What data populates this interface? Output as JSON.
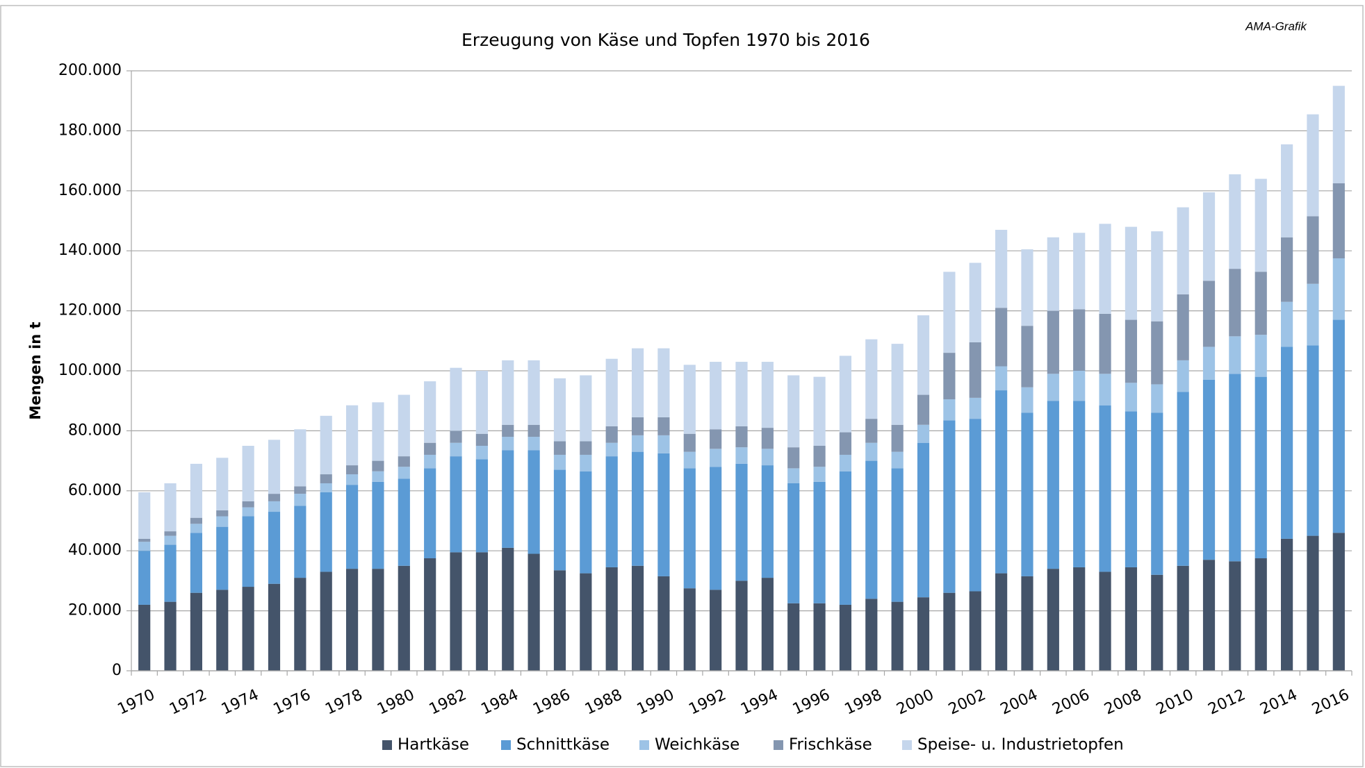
{
  "chart_data": {
    "type": "stacked_bar",
    "title": "Erzeugung von Käse und Topfen 1970 bis 2016",
    "annotation": "AMA-Grafik",
    "y_label": "Mengen in t",
    "categories": [
      "1970",
      null,
      "1972",
      null,
      "1974",
      null,
      "1976",
      null,
      "1978",
      null,
      "1980",
      null,
      "1982",
      null,
      "1984",
      null,
      "1986",
      null,
      "1988",
      null,
      "1990",
      null,
      "1992",
      null,
      "1994",
      null,
      "1996",
      null,
      "1998",
      null,
      "2000",
      null,
      "2002",
      null,
      "2004",
      null,
      "2006",
      null,
      "2008",
      null,
      "2010",
      null,
      "2012",
      null,
      "2014",
      null,
      "2016"
    ],
    "series": [
      {
        "name": "Hartkäse",
        "color": "#44546a",
        "values": [
          22000,
          23000,
          26000,
          27000,
          28000,
          29000,
          31000,
          33000,
          34000,
          34000,
          35000,
          37500,
          39500,
          39500,
          41000,
          39000,
          33500,
          32500,
          34500,
          35000,
          31500,
          27500,
          27000,
          30000,
          31000,
          22500,
          22500,
          22000,
          24000,
          23000,
          24500,
          26000,
          26500,
          32500,
          31500,
          34000,
          34500,
          33000,
          34500,
          32000,
          35000,
          37000,
          36500,
          37500,
          44000,
          45000,
          46000
        ]
      },
      {
        "name": "Schnittkäse",
        "color": "#5b9bd5",
        "values": [
          18000,
          19000,
          20000,
          21000,
          23500,
          24000,
          24000,
          26500,
          28000,
          29000,
          29000,
          30000,
          32000,
          31000,
          32500,
          34500,
          33500,
          34000,
          37000,
          38000,
          41000,
          40000,
          41000,
          39000,
          37500,
          40000,
          40500,
          44500,
          46000,
          44500,
          51500,
          57500,
          57500,
          61000,
          54500,
          56000,
          55500,
          55500,
          52000,
          54000,
          58000,
          60000,
          62500,
          60500,
          64000,
          63500,
          71000
        ]
      },
      {
        "name": "Weichkäse",
        "color": "#9dc3e6",
        "values": [
          3000,
          3000,
          3000,
          3500,
          3000,
          3500,
          4000,
          3000,
          3500,
          3500,
          4000,
          4500,
          4500,
          4500,
          4500,
          4500,
          5000,
          5500,
          4500,
          5500,
          6000,
          5500,
          6000,
          5500,
          5500,
          5000,
          5000,
          5500,
          6000,
          5500,
          6000,
          7000,
          7000,
          8000,
          8500,
          9000,
          10000,
          10500,
          9500,
          9500,
          10500,
          11000,
          12500,
          14000,
          15000,
          20500,
          20500
        ]
      },
      {
        "name": "Frischkäse",
        "color": "#8496b0",
        "values": [
          1000,
          1500,
          2000,
          2000,
          2000,
          2500,
          2500,
          3000,
          3000,
          3500,
          3500,
          4000,
          4000,
          4000,
          4000,
          4000,
          4500,
          4500,
          5500,
          6000,
          6000,
          6000,
          6500,
          7000,
          7000,
          7000,
          7000,
          7500,
          8000,
          9000,
          10000,
          15500,
          18500,
          19500,
          20500,
          21000,
          20500,
          20000,
          21000,
          21000,
          22000,
          22000,
          22500,
          21000,
          21500,
          22500,
          25000
        ]
      },
      {
        "name": "Speise- u. Industrietopfen",
        "color": "#c5d6ec",
        "values": [
          15500,
          16000,
          18000,
          17500,
          18500,
          18000,
          19000,
          19500,
          20000,
          19500,
          20500,
          20500,
          21000,
          21000,
          21500,
          21500,
          21000,
          22000,
          22500,
          23000,
          23000,
          23000,
          22500,
          21500,
          22000,
          24000,
          23000,
          25500,
          26500,
          27000,
          26500,
          27000,
          26500,
          26000,
          25500,
          24500,
          25500,
          30000,
          31000,
          30000,
          29000,
          29500,
          31500,
          31000,
          31000,
          34000,
          32500
        ]
      }
    ],
    "ylim": [
      0,
      200000
    ],
    "yticks": [
      0,
      {
        "value": 20000,
        "label": "20.000"
      },
      {
        "value": 40000,
        "label": "40.000"
      },
      {
        "value": 60000,
        "label": "60.000"
      },
      {
        "value": 80000,
        "label": "80.000"
      },
      {
        "value": 100000,
        "label": "100.000"
      },
      {
        "value": 120000,
        "label": "120.000"
      },
      {
        "value": 140000,
        "label": "140.000"
      },
      {
        "value": 160000,
        "label": "160.000"
      },
      {
        "value": 180000,
        "label": "180.000"
      },
      {
        "value": 200000,
        "label": "200.000"
      }
    ],
    "grid": true,
    "legend": "bottom"
  }
}
